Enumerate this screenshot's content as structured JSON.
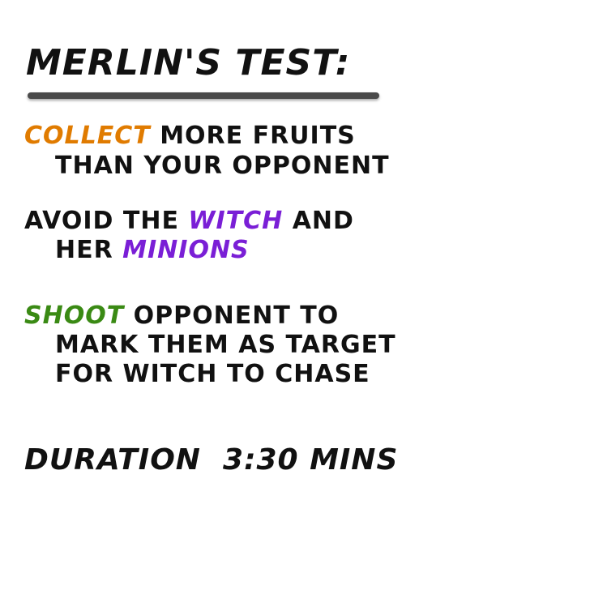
{
  "title": "Merlin's Test:",
  "colors": {
    "collect": "#e07b00",
    "witch": "#7a1fd6",
    "shoot": "#3a8a14",
    "text": "#111111",
    "underline": "#4a4a4a"
  },
  "rules": {
    "collect": {
      "keyword": "Collect",
      "rest": "more fruits",
      "line2": "than your opponent"
    },
    "avoid": {
      "prefix": "Avoid the",
      "keyword1": "Witch",
      "middle": "and",
      "line2_prefix": "her",
      "keyword2": "Minions"
    },
    "shoot": {
      "keyword": "Shoot",
      "rest": "opponent to",
      "line2": "mark them as target",
      "line3": "for witch to chase"
    }
  },
  "duration": {
    "label": "Duration",
    "value": "3:30 mins"
  }
}
